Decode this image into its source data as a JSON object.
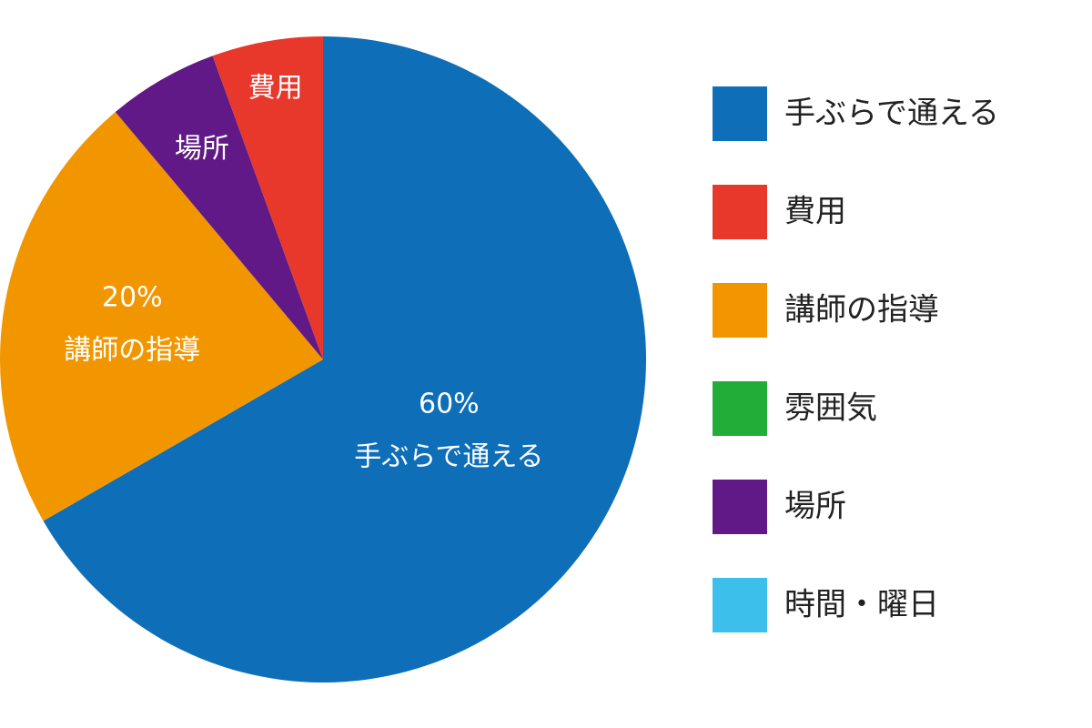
{
  "chart_data": {
    "type": "pie",
    "categories": [
      "手ぶらで通える",
      "費用",
      "講師の指導",
      "雰囲気",
      "場所",
      "時間・曜日"
    ],
    "values": [
      60,
      5,
      20,
      0,
      5,
      0
    ],
    "value_labels": [
      "60%",
      null,
      "20%",
      null,
      null,
      null
    ],
    "colors": [
      "#0e6eb8",
      "#e8382c",
      "#f29600",
      "#22ac38",
      "#601986",
      "#3cbfeb"
    ],
    "legend": "right"
  }
}
